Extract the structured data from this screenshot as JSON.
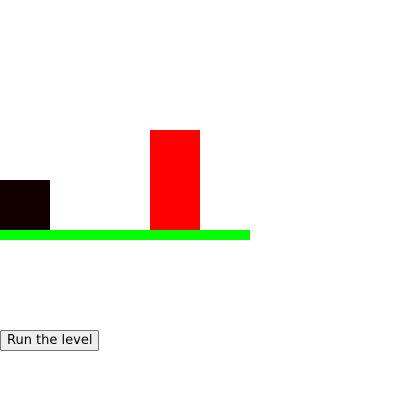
{
  "game": {
    "colors": {
      "player": "#120000",
      "obstacle": "#ff0000",
      "ground": "#00ff00",
      "background": "#ffffff"
    }
  },
  "controls": {
    "run_label": "Run the level"
  }
}
